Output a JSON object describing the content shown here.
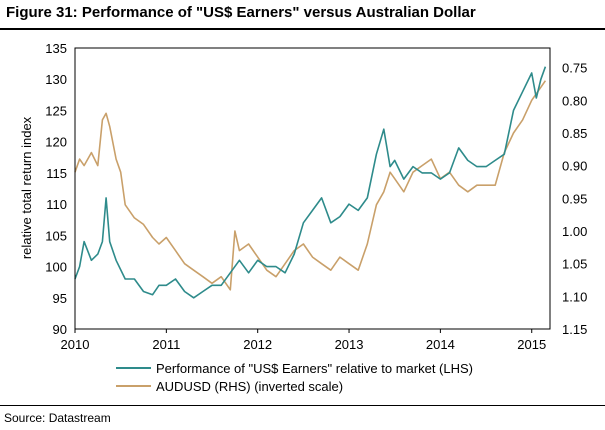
{
  "title": "Figure 31: Performance of \"US$ Earners\" versus Australian Dollar",
  "source": "Source:  Datastream",
  "colors": {
    "series_lhs": "#2E8B8B",
    "series_rhs": "#C9A06A",
    "frame": "#000000"
  },
  "chart_data": {
    "type": "line",
    "title": "Figure 31: Performance of \"US$ Earners\" versus Australian Dollar",
    "xlabel": "",
    "ylabel": "relative total return index",
    "y2label": "",
    "xlim": [
      2010.0,
      2015.2
    ],
    "ylim": [
      90,
      135
    ],
    "y2lim_inverted": [
      0.72,
      1.15
    ],
    "x_ticks": [
      2010,
      2011,
      2012,
      2013,
      2014,
      2015
    ],
    "y_ticks": [
      90,
      95,
      100,
      105,
      110,
      115,
      120,
      125,
      130,
      135
    ],
    "y2_ticks": [
      "0.75",
      "0.80",
      "0.85",
      "0.90",
      "0.95",
      "1.00",
      "1.05",
      "1.10",
      "1.15"
    ],
    "y2_tick_values": [
      0.75,
      0.8,
      0.85,
      0.9,
      0.95,
      1.0,
      1.05,
      1.1,
      1.15
    ],
    "series": [
      {
        "name": "Performance of \"US$ Earners\" relative to market (LHS)",
        "axis": "left",
        "x": [
          2010.0,
          2010.05,
          2010.1,
          2010.18,
          2010.25,
          2010.3,
          2010.34,
          2010.38,
          2010.45,
          2010.55,
          2010.65,
          2010.75,
          2010.85,
          2010.92,
          2011.0,
          2011.1,
          2011.2,
          2011.3,
          2011.4,
          2011.5,
          2011.6,
          2011.7,
          2011.8,
          2011.9,
          2012.0,
          2012.1,
          2012.2,
          2012.3,
          2012.4,
          2012.5,
          2012.6,
          2012.7,
          2012.8,
          2012.9,
          2013.0,
          2013.1,
          2013.2,
          2013.3,
          2013.38,
          2013.45,
          2013.5,
          2013.6,
          2013.7,
          2013.8,
          2013.9,
          2014.0,
          2014.1,
          2014.2,
          2014.3,
          2014.4,
          2014.5,
          2014.6,
          2014.7,
          2014.8,
          2014.9,
          2015.0,
          2015.05,
          2015.1,
          2015.15
        ],
        "y": [
          98,
          100,
          104,
          101,
          102,
          104,
          111,
          104,
          101,
          98,
          98,
          96,
          95.5,
          97,
          97,
          98,
          96,
          95,
          96,
          97,
          97,
          99,
          101,
          99,
          101,
          100,
          100,
          99,
          102,
          107,
          109,
          111,
          107,
          108,
          110,
          109,
          111,
          118,
          122,
          116,
          117,
          114,
          116,
          115,
          115,
          114,
          115,
          119,
          117,
          116,
          116,
          117,
          118,
          125,
          128,
          131,
          127,
          130,
          132
        ]
      },
      {
        "name": "AUDUSD (RHS) (inverted scale)",
        "axis": "right",
        "x": [
          2010.0,
          2010.05,
          2010.1,
          2010.18,
          2010.25,
          2010.3,
          2010.34,
          2010.38,
          2010.45,
          2010.5,
          2010.55,
          2010.65,
          2010.75,
          2010.85,
          2010.92,
          2011.0,
          2011.1,
          2011.2,
          2011.3,
          2011.4,
          2011.5,
          2011.6,
          2011.7,
          2011.75,
          2011.8,
          2011.9,
          2012.0,
          2012.1,
          2012.2,
          2012.3,
          2012.4,
          2012.5,
          2012.6,
          2012.7,
          2012.8,
          2012.9,
          2013.0,
          2013.1,
          2013.2,
          2013.3,
          2013.38,
          2013.45,
          2013.5,
          2013.6,
          2013.7,
          2013.8,
          2013.9,
          2014.0,
          2014.1,
          2014.2,
          2014.3,
          2014.4,
          2014.5,
          2014.6,
          2014.7,
          2014.8,
          2014.9,
          2015.0,
          2015.05,
          2015.1,
          2015.15
        ],
        "y": [
          0.91,
          0.89,
          0.9,
          0.88,
          0.9,
          0.83,
          0.82,
          0.84,
          0.89,
          0.91,
          0.96,
          0.98,
          0.99,
          1.01,
          1.02,
          1.01,
          1.03,
          1.05,
          1.06,
          1.07,
          1.08,
          1.07,
          1.09,
          1.0,
          1.03,
          1.02,
          1.04,
          1.06,
          1.07,
          1.05,
          1.03,
          1.02,
          1.04,
          1.05,
          1.06,
          1.04,
          1.05,
          1.06,
          1.02,
          0.96,
          0.94,
          0.91,
          0.92,
          0.94,
          0.91,
          0.9,
          0.89,
          0.92,
          0.91,
          0.93,
          0.94,
          0.93,
          0.93,
          0.93,
          0.88,
          0.85,
          0.83,
          0.8,
          0.79,
          0.78,
          0.77
        ]
      }
    ],
    "legend_position": "bottom"
  }
}
